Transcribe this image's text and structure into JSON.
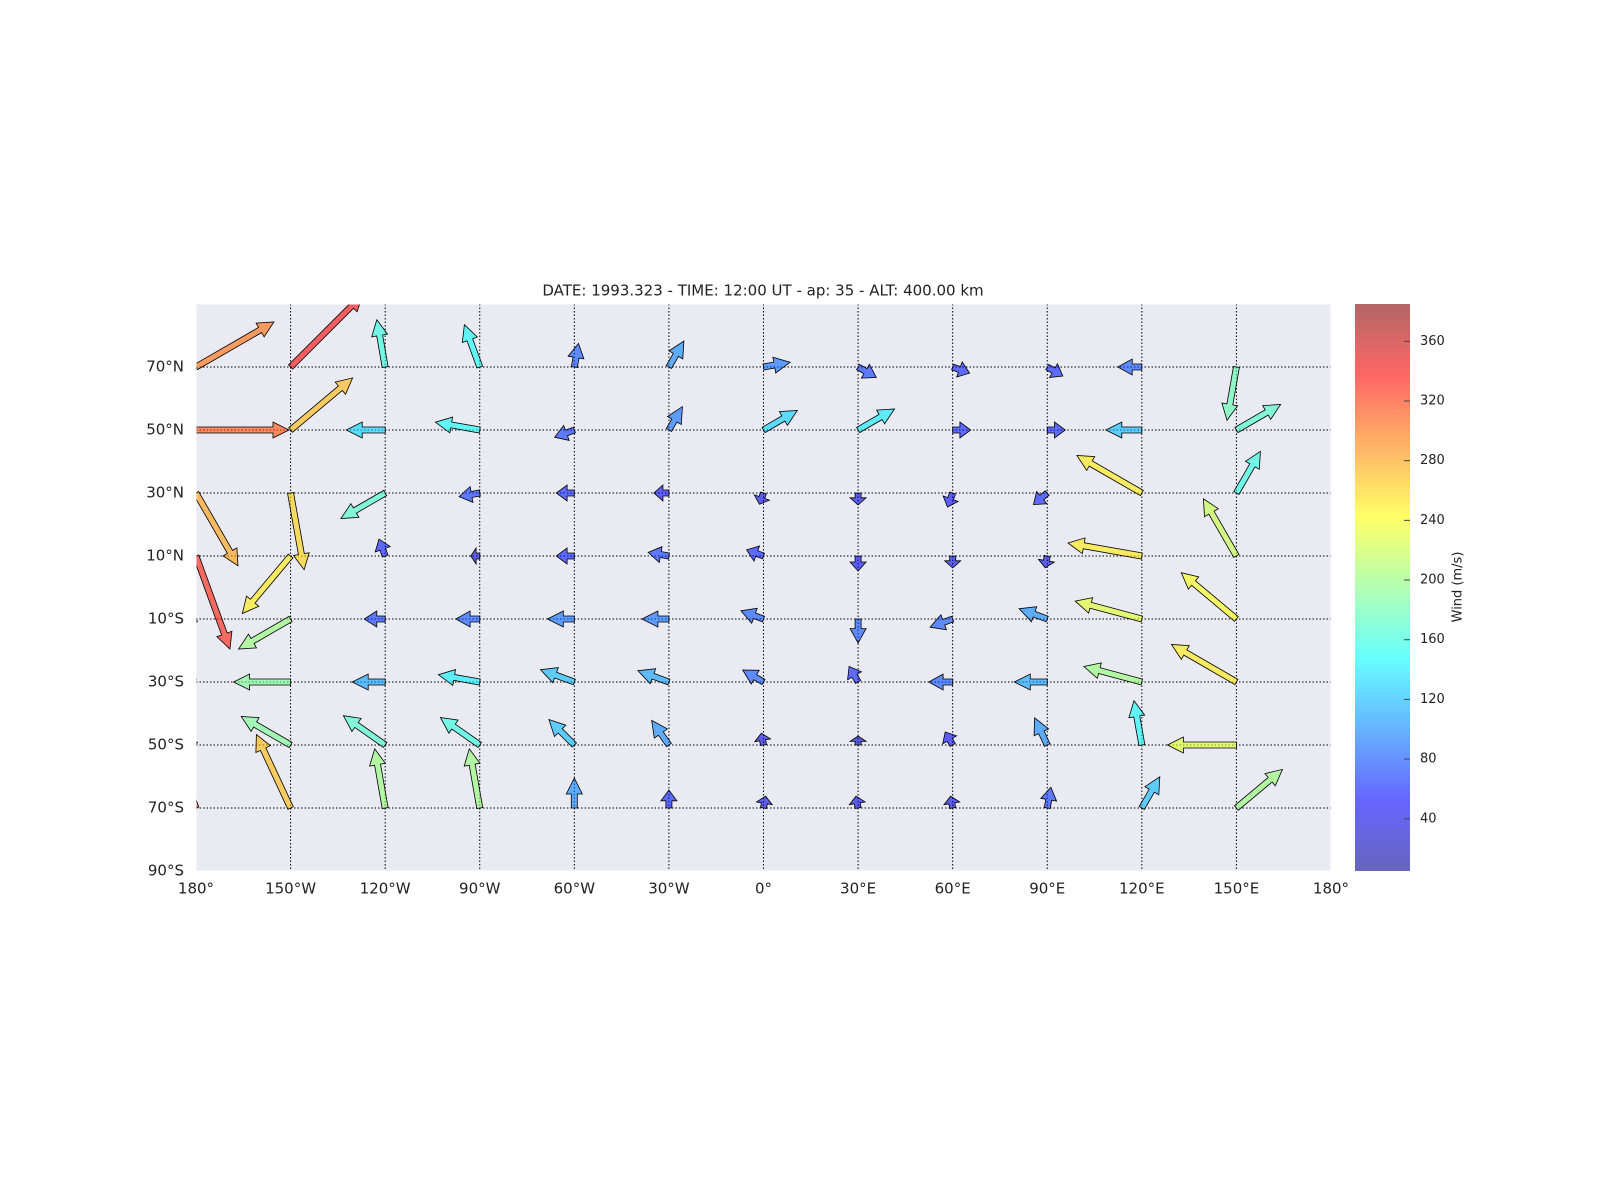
{
  "chart_data": {
    "type": "quiver",
    "title": "DATE: 1993.323 - TIME: 12:00 UT - ap:  35 - ALT:  400.00 km",
    "xlim": [
      -180,
      180
    ],
    "ylim": [
      -90,
      90
    ],
    "xticks": [
      {
        "value": -180,
        "label": "180°"
      },
      {
        "value": -150,
        "label": "150°W"
      },
      {
        "value": -120,
        "label": "120°W"
      },
      {
        "value": -90,
        "label": "90°W"
      },
      {
        "value": -60,
        "label": "60°W"
      },
      {
        "value": -30,
        "label": "30°W"
      },
      {
        "value": 0,
        "label": "0°"
      },
      {
        "value": 30,
        "label": "30°E"
      },
      {
        "value": 60,
        "label": "60°E"
      },
      {
        "value": 90,
        "label": "90°E"
      },
      {
        "value": 120,
        "label": "120°E"
      },
      {
        "value": 150,
        "label": "150°E"
      },
      {
        "value": 180,
        "label": "180°"
      }
    ],
    "yticks": [
      {
        "value": -90,
        "label": "90°S"
      },
      {
        "value": -70,
        "label": "70°S"
      },
      {
        "value": -50,
        "label": "50°S"
      },
      {
        "value": -30,
        "label": "30°S"
      },
      {
        "value": -10,
        "label": "10°S"
      },
      {
        "value": 10,
        "label": "10°N"
      },
      {
        "value": 30,
        "label": "30°N"
      },
      {
        "value": 50,
        "label": "50°N"
      },
      {
        "value": 70,
        "label": "70°N"
      }
    ],
    "grid": true,
    "colorbar": {
      "label": "Wind (m/s)",
      "lim": [
        5,
        385
      ],
      "ticks": [
        40,
        80,
        120,
        160,
        200,
        240,
        280,
        320,
        360
      ],
      "colormap": "jet"
    },
    "vectors": {
      "lon": [
        -180,
        -150,
        -120,
        -90,
        -60,
        -30,
        0,
        30,
        60,
        90,
        120,
        150,
        -180,
        -150,
        -120,
        -90,
        -60,
        -30,
        0,
        30,
        60,
        90,
        120,
        150,
        -180,
        -150,
        -120,
        -90,
        -60,
        -30,
        0,
        30,
        60,
        90,
        120,
        150,
        -180,
        -150,
        -120,
        -90,
        -60,
        -30,
        0,
        30,
        60,
        90,
        120,
        150,
        -180,
        -150,
        -120,
        -90,
        -60,
        -30,
        0,
        30,
        60,
        90,
        120,
        150,
        -180,
        -150,
        -120,
        -90,
        -60,
        -30,
        0,
        30,
        60,
        90,
        120,
        150,
        -180,
        -150,
        -120,
        -90,
        -60,
        -30,
        0,
        30,
        60,
        90,
        120,
        150,
        -180,
        -150,
        -120,
        -90,
        -60,
        -30,
        0,
        30,
        60,
        90,
        120,
        150
      ],
      "lat": [
        70,
        70,
        70,
        70,
        70,
        70,
        70,
        70,
        70,
        70,
        70,
        70,
        50,
        50,
        50,
        50,
        50,
        50,
        50,
        50,
        50,
        50,
        50,
        50,
        30,
        30,
        30,
        30,
        30,
        30,
        30,
        30,
        30,
        30,
        30,
        30,
        10,
        10,
        10,
        10,
        10,
        10,
        10,
        10,
        10,
        10,
        10,
        10,
        -10,
        -10,
        -10,
        -10,
        -10,
        -10,
        -10,
        -10,
        -10,
        -10,
        -10,
        -10,
        -30,
        -30,
        -30,
        -30,
        -30,
        -30,
        -30,
        -30,
        -30,
        -30,
        -30,
        -30,
        -50,
        -50,
        -50,
        -50,
        -50,
        -50,
        -50,
        -50,
        -50,
        -50,
        -50,
        -50,
        -70,
        -70,
        -70,
        -70,
        -70,
        -70,
        -70,
        -70,
        -70,
        -70,
        -70,
        -70
      ],
      "speed": [
        300,
        340,
        160,
        150,
        80,
        100,
        90,
        70,
        60,
        60,
        80,
        180,
        310,
        270,
        130,
        150,
        70,
        90,
        130,
        140,
        60,
        60,
        120,
        170,
        280,
        260,
        170,
        70,
        60,
        50,
        40,
        40,
        50,
        60,
        250,
        160,
        330,
        250,
        60,
        30,
        60,
        70,
        60,
        50,
        40,
        40,
        250,
        220,
        320,
        200,
        70,
        80,
        90,
        90,
        80,
        80,
        80,
        100,
        230,
        240,
        300,
        190,
        110,
        140,
        120,
        110,
        80,
        60,
        80,
        110,
        200,
        250,
        290,
        190,
        170,
        160,
        120,
        100,
        40,
        30,
        50,
        100,
        150,
        230,
        330,
        270,
        200,
        200,
        100,
        60,
        40,
        40,
        40,
        70,
        120,
        200
      ],
      "direction": [
        30,
        45,
        100,
        110,
        80,
        60,
        10,
        -30,
        -20,
        -30,
        180,
        -100,
        0,
        40,
        180,
        170,
        200,
        60,
        30,
        30,
        0,
        0,
        180,
        30,
        -60,
        -80,
        210,
        190,
        180,
        180,
        250,
        270,
        250,
        220,
        150,
        60,
        -70,
        230,
        110,
        180,
        180,
        170,
        160,
        270,
        270,
        260,
        170,
        120,
        210,
        210,
        180,
        180,
        180,
        180,
        160,
        270,
        200,
        160,
        165,
        140,
        170,
        180,
        180,
        170,
        160,
        160,
        150,
        120,
        180,
        180,
        165,
        150,
        150,
        150,
        145,
        145,
        135,
        125,
        100,
        90,
        120,
        115,
        100,
        180,
        110,
        115,
        100,
        100,
        90,
        90,
        80,
        100,
        100,
        80,
        60,
        40
      ]
    }
  }
}
